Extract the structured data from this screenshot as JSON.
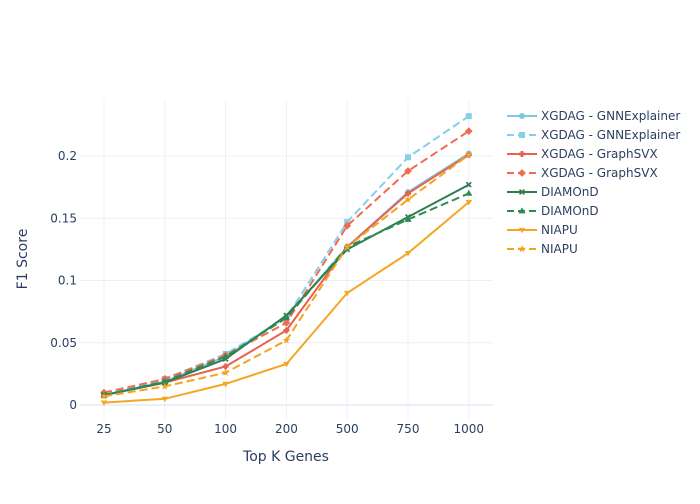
{
  "chart_data": {
    "type": "line",
    "title": "",
    "xlabel": "Top K Genes",
    "ylabel": "F1 Score",
    "categories": [
      "25",
      "50",
      "100",
      "200",
      "500",
      "750",
      "1000"
    ],
    "ylim": [
      -0.012,
      0.245
    ],
    "yticks": [
      0,
      0.05,
      0.1,
      0.15,
      0.2
    ],
    "ytick_labels": [
      "0",
      "0.05",
      "0.1",
      "0.15",
      "0.2"
    ],
    "grid": true,
    "legend_position": "right",
    "series": [
      {
        "name": "XGDAG - GNNExplainer",
        "color": "#7ec8e3",
        "dash": "solid",
        "marker": "circle",
        "values": [
          0.008,
          0.019,
          0.039,
          0.071,
          0.127,
          0.171,
          0.202
        ]
      },
      {
        "name": "XGDAG - GNNExplainer",
        "color": "#87ceeb",
        "dash": "dashed",
        "marker": "square",
        "values": [
          0.008,
          0.021,
          0.041,
          0.07,
          0.147,
          0.199,
          0.232
        ]
      },
      {
        "name": "XGDAG - GraphSVX",
        "color": "#e8614d",
        "dash": "solid",
        "marker": "cross",
        "values": [
          0.008,
          0.018,
          0.031,
          0.06,
          0.127,
          0.17,
          0.201
        ]
      },
      {
        "name": "XGDAG - GraphSVX",
        "color": "#f26b50",
        "dash": "dashed",
        "marker": "diamond",
        "values": [
          0.01,
          0.021,
          0.04,
          0.066,
          0.144,
          0.188,
          0.22
        ]
      },
      {
        "name": "DIAMOnD",
        "color": "#2e7d4f",
        "dash": "solid",
        "marker": "x",
        "values": [
          0.008,
          0.018,
          0.037,
          0.072,
          0.125,
          0.151,
          0.177
        ]
      },
      {
        "name": "DIAMOnD",
        "color": "#2e8b57",
        "dash": "dashed",
        "marker": "triangle",
        "values": [
          0.008,
          0.019,
          0.039,
          0.07,
          0.127,
          0.149,
          0.17
        ]
      },
      {
        "name": "NIAPU",
        "color": "#f5a623",
        "dash": "solid",
        "marker": "triangle-down",
        "values": [
          0.002,
          0.005,
          0.017,
          0.033,
          0.09,
          0.122,
          0.163
        ]
      },
      {
        "name": "NIAPU",
        "color": "#f4a31c",
        "dash": "dashed",
        "marker": "star",
        "values": [
          0.007,
          0.015,
          0.026,
          0.052,
          0.127,
          0.165,
          0.201
        ]
      }
    ]
  }
}
